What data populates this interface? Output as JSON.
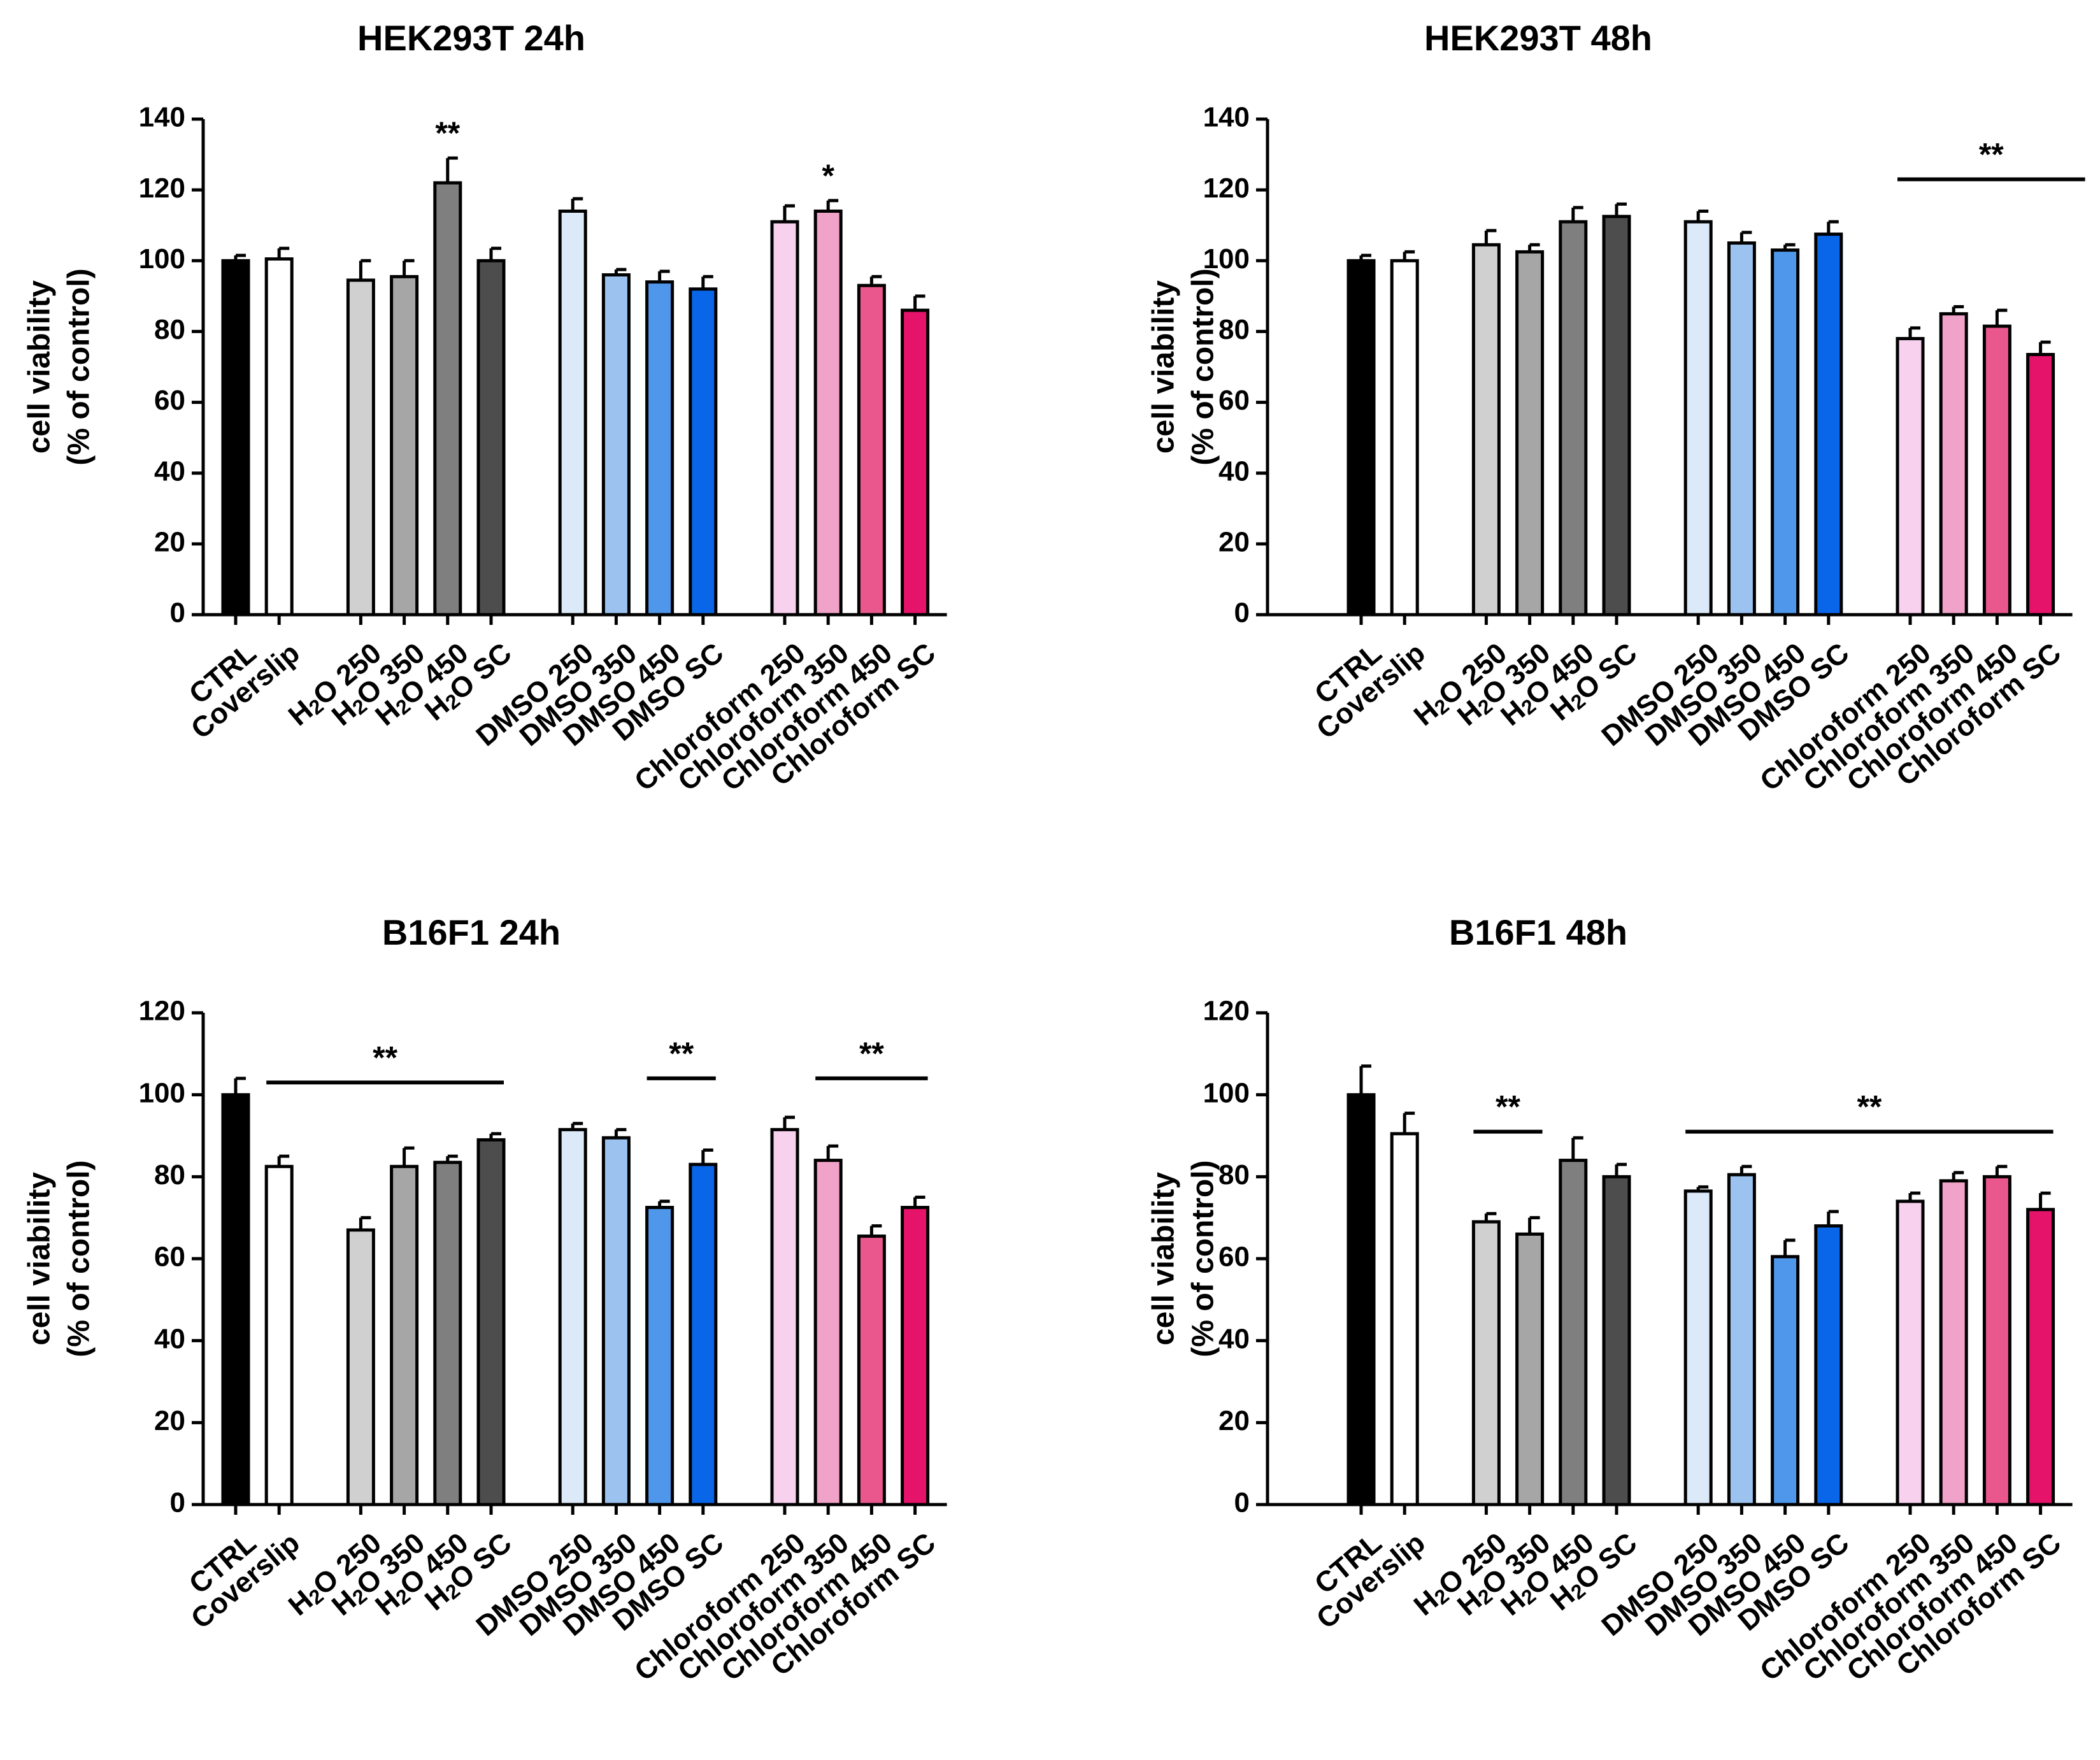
{
  "figure": {
    "panels_layout": "2x2 grid",
    "colors": {
      "CTRL": "#000000",
      "Coverslip": "#ffffff",
      "H2O 250": "#d0d0d0",
      "H2O 350": "#a6a6a6",
      "H2O 450": "#7f7f7f",
      "H2O SC": "#4d4d4d",
      "DMSO 250": "#dce9f9",
      "DMSO 350": "#9cc3f0",
      "DMSO 450": "#4f97ea",
      "DMSO SC": "#0a66e8",
      "Chloroform 250": "#f7d1ee",
      "Chloroform 350": "#f1a2c8",
      "Chloroform 450": "#e9578c",
      "Chloroform SC": "#e5136a"
    }
  },
  "chart_data": [
    {
      "type": "bar",
      "title": "HEK293T 24h",
      "ylabel": [
        "cell viability",
        "(% of control)"
      ],
      "xlabel": "",
      "ylim": [
        0,
        140
      ],
      "yticks": [
        0,
        20,
        40,
        60,
        80,
        100,
        120,
        140
      ],
      "categories": [
        "CTRL",
        "Coverslip",
        "H2O 250",
        "H2O 350",
        "H2O 450",
        "H2O SC",
        "DMSO 250",
        "DMSO 350",
        "DMSO 450",
        "DMSO SC",
        "Chloroform 250",
        "Chloroform 350",
        "Chloroform 450",
        "Chloroform SC"
      ],
      "values": [
        100,
        100.5,
        94.5,
        95.5,
        122,
        100,
        114,
        96,
        94,
        92,
        111,
        114,
        93,
        86
      ],
      "errors": [
        1.5,
        3,
        5.5,
        4.5,
        7,
        3.5,
        3.5,
        1.5,
        3,
        3.5,
        4.5,
        3,
        2.5,
        4
      ],
      "significance": [
        {
          "label": "**",
          "type": "single",
          "category": "H2O 450"
        },
        {
          "label": "*",
          "type": "single",
          "category": "Chloroform 350"
        }
      ]
    },
    {
      "type": "bar",
      "title": "HEK293T 48h",
      "ylabel": [
        "cell viability",
        "(% of control)"
      ],
      "xlabel": "",
      "ylim": [
        0,
        140
      ],
      "yticks": [
        0,
        20,
        40,
        60,
        80,
        100,
        120,
        140
      ],
      "categories": [
        "CTRL",
        "Coverslip",
        "H2O 250",
        "H2O 350",
        "H2O 450",
        "H2O SC",
        "DMSO 250",
        "DMSO 350",
        "DMSO 450",
        "DMSO SC",
        "Chloroform 250",
        "Chloroform 350",
        "Chloroform 450",
        "Chloroform SC"
      ],
      "values": [
        100,
        100,
        104.5,
        102.5,
        111,
        112.5,
        111,
        105,
        103,
        107.5,
        78,
        85,
        81.5,
        73.5
      ],
      "errors": [
        1.5,
        2.5,
        4,
        2,
        4,
        3.5,
        3,
        3,
        1.5,
        3.5,
        3,
        2,
        4.5,
        3.5
      ],
      "significance": [
        {
          "label": "**",
          "type": "bracket",
          "range": [
            "Chloroform 250",
            "Chloroform SC"
          ],
          "y": 123
        }
      ]
    },
    {
      "type": "bar",
      "title": "B16F1 24h",
      "ylabel": [
        "cell viability",
        "(% of control)"
      ],
      "xlabel": "",
      "ylim": [
        0,
        120
      ],
      "yticks": [
        0,
        20,
        40,
        60,
        80,
        100,
        120
      ],
      "categories": [
        "CTRL",
        "Coverslip",
        "H2O 250",
        "H2O 350",
        "H2O 450",
        "H2O SC",
        "DMSO 250",
        "DMSO 350",
        "DMSO 450",
        "DMSO SC",
        "Chloroform 250",
        "Chloroform 350",
        "Chloroform 450",
        "Chloroform SC"
      ],
      "values": [
        100,
        82.5,
        67,
        82.5,
        83.5,
        89,
        91.5,
        89.5,
        72.5,
        83,
        91.5,
        84,
        65.5,
        72.5
      ],
      "errors": [
        4,
        2.5,
        3,
        4.5,
        1.5,
        1.5,
        1.5,
        2,
        1.5,
        3.5,
        3,
        3.5,
        2.5,
        2.5
      ],
      "significance": [
        {
          "label": "**",
          "type": "bracket",
          "range": [
            "Coverslip",
            "H2O SC"
          ],
          "y": 103
        },
        {
          "label": "**",
          "type": "bracket",
          "range": [
            "DMSO 450",
            "DMSO SC"
          ],
          "y": 104
        },
        {
          "label": "**",
          "type": "bracket",
          "range": [
            "Chloroform 350",
            "Chloroform SC"
          ],
          "y": 104
        }
      ]
    },
    {
      "type": "bar",
      "title": "B16F1 48h",
      "ylabel": [
        "cell viability",
        "(% of control)"
      ],
      "xlabel": "",
      "ylim": [
        0,
        120
      ],
      "yticks": [
        0,
        20,
        40,
        60,
        80,
        100,
        120
      ],
      "categories": [
        "CTRL",
        "Coverslip",
        "H2O 250",
        "H2O 350",
        "H2O 450",
        "H2O SC",
        "DMSO 250",
        "DMSO 350",
        "DMSO 450",
        "DMSO SC",
        "Chloroform 250",
        "Chloroform 350",
        "Chloroform 450",
        "Chloroform SC"
      ],
      "values": [
        100,
        90.5,
        69,
        66,
        84,
        80,
        76.5,
        80.5,
        60.5,
        68,
        74,
        79,
        80,
        72
      ],
      "errors": [
        7,
        5,
        2,
        4,
        5.5,
        3,
        1,
        2,
        4,
        3.5,
        2,
        2,
        2.5,
        4
      ],
      "significance": [
        {
          "label": "**",
          "type": "bracket",
          "range": [
            "H2O 250",
            "H2O 350"
          ],
          "y": 91
        },
        {
          "label": "**",
          "type": "bracket",
          "range": [
            "DMSO 250",
            "Chloroform SC"
          ],
          "y": 91
        }
      ]
    }
  ]
}
